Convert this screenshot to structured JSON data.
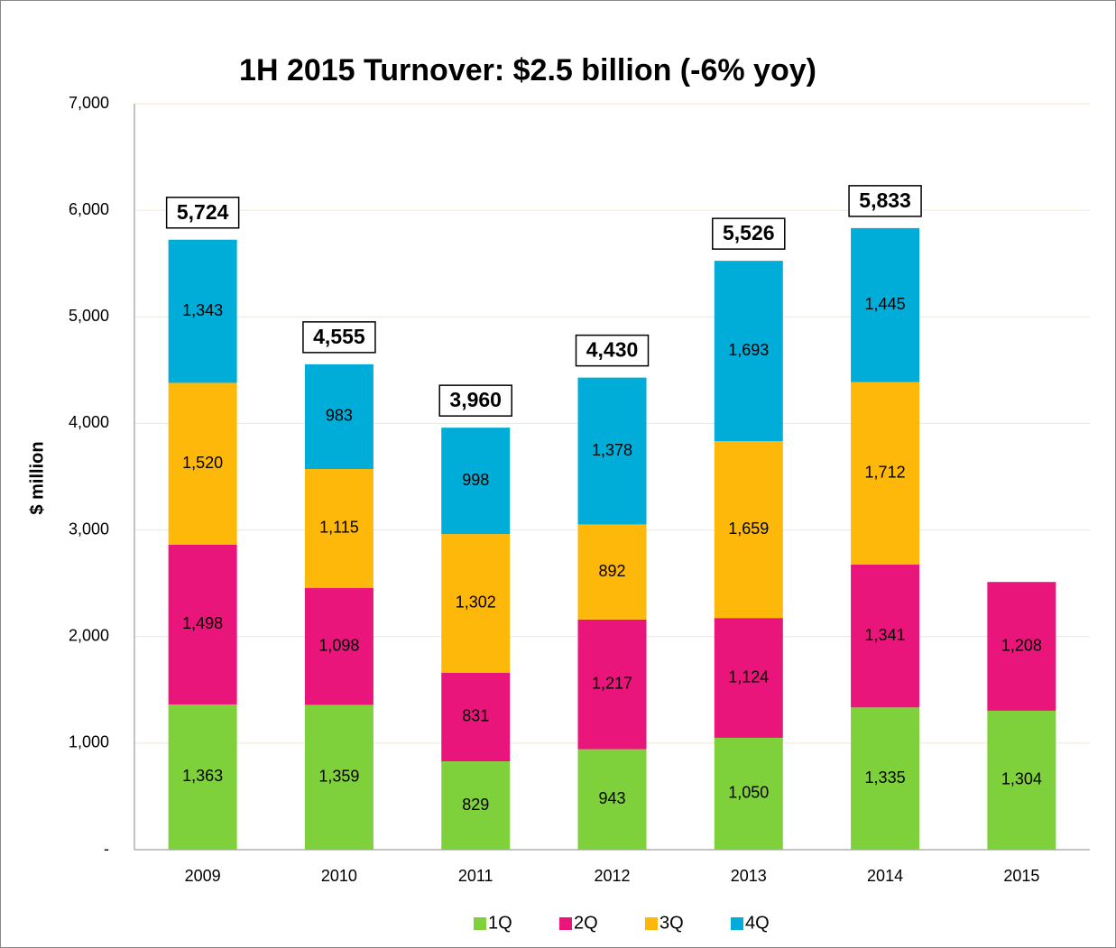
{
  "chart_data": {
    "type": "stacked_bar",
    "title": "1H 2015 Turnover: $2.5 billion (-6% yoy)",
    "y_label": "$ million",
    "categories": [
      "2009",
      "2010",
      "2011",
      "2012",
      "2013",
      "2014",
      "2015"
    ],
    "series": [
      {
        "name": "1Q",
        "color": "#7fd13b",
        "values": [
          1363,
          1359,
          829,
          943,
          1050,
          1335,
          1304
        ],
        "value_labels": [
          "1,363",
          "1,359",
          "829",
          "943",
          "1,050",
          "1,335",
          "1,304"
        ]
      },
      {
        "name": "2Q",
        "color": "#ea157a",
        "values": [
          1498,
          1098,
          831,
          1217,
          1124,
          1341,
          1208
        ],
        "value_labels": [
          "1,498",
          "1,098",
          "831",
          "1,217",
          "1,124",
          "1,341",
          "1,208"
        ]
      },
      {
        "name": "3Q",
        "color": "#feb80a",
        "values": [
          1520,
          1115,
          1302,
          892,
          1659,
          1712,
          null
        ],
        "value_labels": [
          "1,520",
          "1,115",
          "1,302",
          "892",
          "1,659",
          "1,712",
          null
        ]
      },
      {
        "name": "4Q",
        "color": "#00add8",
        "values": [
          1343,
          983,
          998,
          1378,
          1693,
          1445,
          null
        ],
        "value_labels": [
          "1,343",
          "983",
          "998",
          "1,378",
          "1,693",
          "1,445",
          null
        ]
      }
    ],
    "totals": {
      "values": [
        5724,
        4555,
        3960,
        4430,
        5526,
        5833,
        null
      ],
      "value_labels": [
        "5,724",
        "4,555",
        "3,960",
        "4,430",
        "5,526",
        "5,833",
        null
      ]
    },
    "ylim": [
      0,
      7000
    ],
    "yticks": [
      {
        "value": 0,
        "label": "-"
      },
      {
        "value": 1000,
        "label": "1,000"
      },
      {
        "value": 2000,
        "label": "2,000"
      },
      {
        "value": 3000,
        "label": "3,000"
      },
      {
        "value": 4000,
        "label": "4,000"
      },
      {
        "value": 5000,
        "label": "5,000"
      },
      {
        "value": 6000,
        "label": "6,000"
      },
      {
        "value": 7000,
        "label": "7,000"
      }
    ],
    "grid": true,
    "legend": "bottom"
  }
}
